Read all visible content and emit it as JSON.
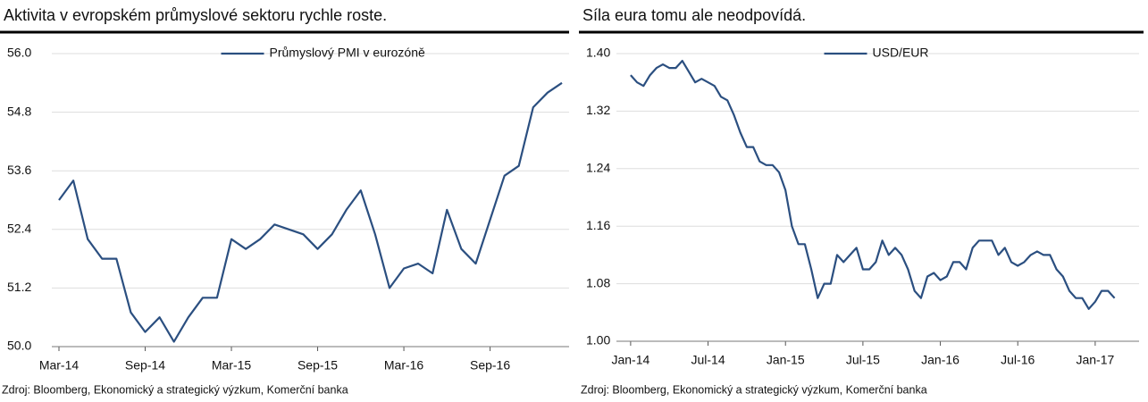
{
  "chart_data": [
    {
      "type": "line",
      "title": "Aktivita v evropském průmyslové sektoru rychle roste.",
      "source": "Zdroj: Bloomberg, Ekonomický a strategický výzkum, Komerční banka",
      "legend": "upper center",
      "grid": true,
      "categories": [
        "Mar-14",
        null,
        null,
        null,
        null,
        null,
        "Sep-14",
        null,
        null,
        null,
        null,
        null,
        "Mar-15",
        null,
        null,
        null,
        null,
        null,
        "Sep-15",
        null,
        null,
        null,
        null,
        null,
        "Mar-16",
        null,
        null,
        null,
        null,
        null,
        "Sep-16",
        null,
        null,
        null,
        null,
        null
      ],
      "series": [
        {
          "name": "Průmyslový PMI v eurozóně",
          "color": "#2b4f80",
          "values": [
            53.0,
            53.4,
            52.2,
            51.8,
            51.8,
            50.7,
            50.3,
            50.6,
            50.1,
            50.6,
            51.0,
            51.0,
            52.2,
            52.0,
            52.2,
            52.5,
            52.4,
            52.3,
            52.0,
            52.3,
            52.8,
            53.2,
            52.3,
            51.2,
            51.6,
            51.7,
            51.5,
            52.8,
            52.0,
            51.7,
            52.6,
            53.5,
            53.7,
            54.9,
            55.2,
            55.4
          ]
        }
      ],
      "ylim": [
        50,
        56
      ],
      "yticks": [
        {
          "value": 50,
          "label": "50.0"
        },
        {
          "value": 51.2,
          "label": "51.2"
        },
        {
          "value": 52.4,
          "label": "52.4"
        },
        {
          "value": 53.6,
          "label": "53.6"
        },
        {
          "value": 54.8,
          "label": "54.8"
        },
        {
          "value": 56,
          "label": "56.0"
        }
      ]
    },
    {
      "type": "line",
      "title": "Síla eura tomu ale neodpovídá.",
      "source": "Zdroj: Bloomberg, Ekonomický a strategický výzkum, Komerční banka",
      "legend": "upper center",
      "grid": true,
      "x": [
        0,
        0.5,
        1,
        1.5,
        2,
        2.5,
        3,
        3.5,
        4,
        4.5,
        5,
        5.5,
        6,
        6.5,
        7,
        7.5,
        8,
        8.5,
        9,
        9.5,
        10,
        10.5,
        11,
        11.5,
        12,
        12.5,
        13,
        13.5,
        14,
        14.5,
        15,
        15.5,
        16,
        16.5,
        17,
        17.5,
        18,
        18.5,
        19,
        19.5,
        20,
        20.5,
        21,
        21.5,
        22,
        22.5,
        23,
        23.5,
        24,
        24.5,
        25,
        25.5,
        26,
        26.5,
        27,
        27.5,
        28,
        28.5,
        29,
        29.5,
        30,
        30.5,
        31,
        31.5,
        32,
        32.5,
        33,
        33.5,
        34,
        34.5,
        35,
        35.5,
        36,
        36.5,
        37,
        37.5
      ],
      "series": [
        {
          "name": "USD/EUR",
          "color": "#2b4f80",
          "values": [
            1.37,
            1.36,
            1.355,
            1.37,
            1.38,
            1.385,
            1.38,
            1.38,
            1.39,
            1.375,
            1.36,
            1.365,
            1.36,
            1.355,
            1.34,
            1.335,
            1.315,
            1.29,
            1.27,
            1.27,
            1.25,
            1.245,
            1.245,
            1.235,
            1.21,
            1.16,
            1.135,
            1.135,
            1.1,
            1.06,
            1.08,
            1.08,
            1.12,
            1.11,
            1.12,
            1.13,
            1.1,
            1.1,
            1.11,
            1.14,
            1.12,
            1.13,
            1.12,
            1.1,
            1.07,
            1.06,
            1.09,
            1.095,
            1.085,
            1.09,
            1.11,
            1.11,
            1.1,
            1.13,
            1.14,
            1.14,
            1.14,
            1.12,
            1.13,
            1.11,
            1.105,
            1.11,
            1.12,
            1.125,
            1.12,
            1.12,
            1.1,
            1.09,
            1.07,
            1.06,
            1.06,
            1.045,
            1.055,
            1.07,
            1.07,
            1.06
          ]
        }
      ],
      "xlim": [
        -1.1,
        39.4
      ],
      "xticks": [
        {
          "value": 0,
          "label": "Jan-14"
        },
        {
          "value": 6,
          "label": "Jul-14"
        },
        {
          "value": 12,
          "label": "Jan-15"
        },
        {
          "value": 18,
          "label": "Jul-15"
        },
        {
          "value": 24,
          "label": "Jan-16"
        },
        {
          "value": 30,
          "label": "Jul-16"
        },
        {
          "value": 36,
          "label": "Jan-17"
        }
      ],
      "ylim": [
        1.0,
        1.4
      ],
      "yticks": [
        {
          "value": 1.0,
          "label": "1.00"
        },
        {
          "value": 1.08,
          "label": "1.08"
        },
        {
          "value": 1.16,
          "label": "1.16"
        },
        {
          "value": 1.24,
          "label": "1.24"
        },
        {
          "value": 1.32,
          "label": "1.32"
        },
        {
          "value": 1.4,
          "label": "1.40"
        }
      ]
    }
  ]
}
